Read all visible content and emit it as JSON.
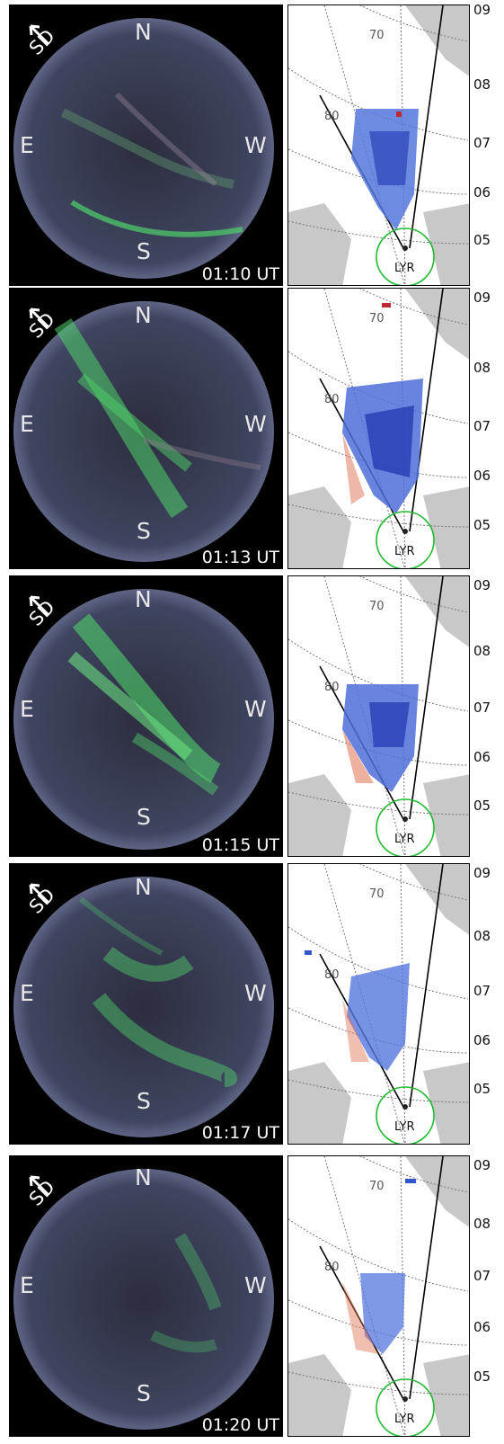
{
  "compass": {
    "north": "N",
    "south": "S",
    "east": "E",
    "west": "W",
    "direction_marker": "SD"
  },
  "map_labels": {
    "lat70": "70",
    "lat80": "80",
    "station": "LYR",
    "degree": "°"
  },
  "right_axis_ticks": [
    "09",
    "08",
    "07",
    "06",
    "05"
  ],
  "panels": [
    {
      "time": "01:10 UT"
    },
    {
      "time": "01:13 UT"
    },
    {
      "time": "01:15 UT"
    },
    {
      "time": "01:17 UT"
    },
    {
      "time": "01:20 UT"
    }
  ],
  "colors": {
    "aurora": "#4fd26a",
    "sky": "#3a3f55",
    "land": "#c8c8c8",
    "station_ring": "#22bb33",
    "neg": "#3355cc",
    "pos": "#e07050"
  }
}
